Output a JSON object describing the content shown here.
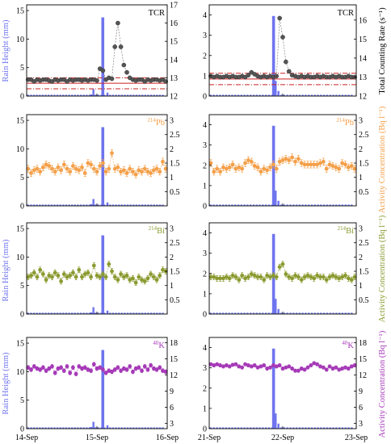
{
  "figure": {
    "left_ylabel": "Rain Height (mm)",
    "right_ylabels": [
      "Total Counting Rate (s⁻¹)",
      "Activity Concentration (Bq l⁻¹)",
      "Activity Concentration (Bq l⁻¹)",
      "Activity Concentration (Bq l⁻¹)"
    ],
    "x_ticks_left": [
      "14-Sep",
      "15-Sep",
      "16-Sep"
    ],
    "x_ticks_right": [
      "21-Sep",
      "22-Sep",
      "23-Sep"
    ],
    "colors": {
      "rain": "#6f74ee",
      "tcr": "#555555",
      "pb": "#f4a04a",
      "bi": "#8b9a30",
      "k": "#a63ab8",
      "threshold": "#cc2222"
    }
  },
  "chart_data": [
    {
      "type": "bar+scatter",
      "panel": "tcr-14-16",
      "label": "TCR",
      "label_sup": "",
      "x_range": [
        0,
        48
      ],
      "rain_ylim": [
        0,
        16
      ],
      "rain_ticks": [
        0,
        5,
        10,
        15
      ],
      "rain": [
        {
          "x": 22.0,
          "y": 0.3
        },
        {
          "x": 22.8,
          "y": 1.2
        },
        {
          "x": 26.0,
          "y": 13.8
        },
        {
          "x": 27.6,
          "y": 0.6
        }
      ],
      "series_ylim": [
        12,
        17
      ],
      "series_ticks": [
        12,
        13,
        14,
        15,
        16,
        17
      ],
      "series": [
        12.9,
        12.9,
        12.8,
        12.9,
        12.85,
        12.9,
        12.9,
        12.85,
        12.8,
        12.9,
        12.85,
        12.9,
        12.9,
        12.8,
        12.9,
        12.85,
        12.9,
        12.9,
        12.85,
        12.9,
        12.85,
        12.9,
        12.9,
        12.85,
        13.5,
        13.4,
        12.9,
        13.0,
        12.95,
        14.7,
        16.0,
        14.7,
        13.7,
        13.3,
        13.0,
        12.9,
        12.85,
        12.9,
        12.9,
        12.8,
        12.9,
        12.85,
        12.9,
        12.9,
        12.85,
        12.9,
        12.8
      ],
      "thresholds": [
        {
          "y": 12.7,
          "style": "solid"
        },
        {
          "y": 13.0,
          "style": "dash"
        },
        {
          "y": 12.4,
          "style": "dash"
        }
      ]
    },
    {
      "type": "bar+scatter",
      "panel": "tcr-21-23",
      "label": "TCR",
      "label_sup": "",
      "x_range": [
        0,
        48
      ],
      "rain_ylim": [
        0,
        4.5
      ],
      "rain_ticks": [
        0,
        1,
        2,
        3,
        4
      ],
      "rain": [
        {
          "x": 21.0,
          "y": 3.95
        },
        {
          "x": 21.7,
          "y": 0.75
        },
        {
          "x": 22.6,
          "y": 0.25
        }
      ],
      "series_ylim": [
        12,
        16.8
      ],
      "series_ticks": [
        12,
        13,
        14,
        15,
        16
      ],
      "series": [
        13.05,
        13.0,
        13.05,
        13.0,
        13.0,
        13.05,
        13.0,
        13.05,
        13.0,
        13.0,
        13.05,
        13.0,
        13.1,
        13.25,
        13.15,
        13.05,
        13.0,
        13.05,
        13.0,
        13.05,
        13.0,
        13.05,
        16.1,
        15.1,
        13.8,
        13.3,
        13.1,
        13.05,
        13.0,
        13.05,
        13.0,
        13.05,
        13.0,
        13.0,
        13.05,
        13.0,
        13.05,
        13.0,
        13.0,
        13.05,
        13.0,
        13.05,
        13.0,
        13.0,
        13.05,
        13.0,
        13.0
      ],
      "thresholds": [
        {
          "y": 12.9,
          "style": "solid"
        },
        {
          "y": 13.2,
          "style": "dash"
        },
        {
          "y": 12.6,
          "style": "dash"
        }
      ]
    },
    {
      "type": "bar+scatter",
      "panel": "pb-14-16",
      "label": "Pb",
      "label_sup": "214",
      "x_range": [
        0,
        48
      ],
      "rain_ylim": [
        0,
        16
      ],
      "rain_ticks": [
        0,
        5,
        10,
        15
      ],
      "rain": [
        {
          "x": 22.0,
          "y": 0.3
        },
        {
          "x": 22.8,
          "y": 1.2
        },
        {
          "x": 26.0,
          "y": 13.8
        },
        {
          "x": 27.6,
          "y": 0.6
        }
      ],
      "series_ylim": [
        0,
        3.2
      ],
      "series_ticks": [
        0.5,
        1.0,
        1.5,
        2.0,
        2.5,
        3.0
      ],
      "series": [
        1.3,
        1.15,
        1.25,
        1.3,
        1.2,
        1.35,
        1.45,
        1.4,
        1.3,
        1.2,
        1.35,
        1.25,
        1.45,
        1.3,
        1.2,
        1.4,
        1.3,
        1.25,
        1.35,
        1.15,
        1.5,
        1.45,
        1.3,
        1.2,
        1.4,
        1.5,
        1.2,
        1.3,
        1.85,
        1.3,
        1.35,
        1.2,
        1.25,
        1.15,
        1.3,
        1.2,
        1.1,
        1.25,
        1.2,
        1.3,
        1.2,
        1.15,
        1.25,
        1.3,
        1.2,
        1.55,
        1.3
      ],
      "error": 0.12
    },
    {
      "type": "bar+scatter",
      "panel": "pb-21-23",
      "label": "Pb",
      "label_sup": "214",
      "x_range": [
        0,
        48
      ],
      "rain_ylim": [
        0,
        4.5
      ],
      "rain_ticks": [
        0,
        1,
        2,
        3,
        4
      ],
      "rain": [
        {
          "x": 21.0,
          "y": 3.95
        },
        {
          "x": 21.7,
          "y": 0.75
        },
        {
          "x": 22.6,
          "y": 0.25
        }
      ],
      "series_ylim": [
        0,
        3.2
      ],
      "series_ticks": [
        0.5,
        1.0,
        1.5,
        2.0,
        2.5,
        3.0
      ],
      "series": [
        1.5,
        1.2,
        1.3,
        1.2,
        1.35,
        1.3,
        1.35,
        1.45,
        1.3,
        1.35,
        1.3,
        1.5,
        1.6,
        1.55,
        1.4,
        1.35,
        1.2,
        1.3,
        1.25,
        1.35,
        1.45,
        1.3,
        1.55,
        1.6,
        1.65,
        1.6,
        1.7,
        1.55,
        1.65,
        1.5,
        1.45,
        1.45,
        1.45,
        1.45,
        1.45,
        1.5,
        1.55,
        1.3,
        1.45,
        1.4,
        1.35,
        1.3,
        1.5,
        1.45,
        1.35,
        1.4,
        1.3
      ],
      "error": 0.12
    },
    {
      "type": "bar+scatter",
      "panel": "bi-14-16",
      "label": "Bi",
      "label_sup": "214",
      "x_range": [
        0,
        48
      ],
      "rain_ylim": [
        0,
        16
      ],
      "rain_ticks": [
        0,
        5,
        10,
        15
      ],
      "rain": [
        {
          "x": 22.0,
          "y": 0.3
        },
        {
          "x": 22.8,
          "y": 1.2
        },
        {
          "x": 26.0,
          "y": 13.8
        },
        {
          "x": 27.6,
          "y": 0.6
        }
      ],
      "series_ylim": [
        0,
        3.2
      ],
      "series_ticks": [
        0.5,
        1.0,
        1.5,
        2.0,
        2.5,
        3.0
      ],
      "series": [
        1.3,
        1.35,
        1.45,
        1.3,
        1.55,
        1.4,
        1.2,
        1.35,
        1.3,
        1.45,
        1.35,
        1.15,
        1.4,
        1.3,
        1.35,
        1.45,
        1.3,
        1.55,
        1.3,
        1.4,
        1.45,
        1.3,
        1.7,
        1.35,
        1.3,
        1.4,
        1.3,
        1.75,
        1.5,
        1.3,
        1.2,
        1.4,
        1.3,
        1.35,
        1.2,
        1.25,
        1.1,
        1.3,
        1.2,
        1.15,
        1.25,
        1.4,
        1.3,
        1.2,
        1.35,
        1.55,
        1.5
      ],
      "error": 0.1
    },
    {
      "type": "bar+scatter",
      "panel": "bi-21-23",
      "label": "Bi",
      "label_sup": "214",
      "x_range": [
        0,
        48
      ],
      "rain_ylim": [
        0,
        4.5
      ],
      "rain_ticks": [
        0,
        1,
        2,
        3,
        4
      ],
      "rain": [
        {
          "x": 21.0,
          "y": 3.95
        },
        {
          "x": 21.7,
          "y": 0.75
        },
        {
          "x": 22.6,
          "y": 0.25
        }
      ],
      "series_ylim": [
        0,
        3.2
      ],
      "series_ticks": [
        0.5,
        1.0,
        1.5,
        2.0,
        2.5,
        3.0
      ],
      "series": [
        1.3,
        1.3,
        1.25,
        1.25,
        1.25,
        1.3,
        1.25,
        1.35,
        1.3,
        1.2,
        1.35,
        1.25,
        1.3,
        1.4,
        1.35,
        1.3,
        1.3,
        1.2,
        1.35,
        1.3,
        1.35,
        1.3,
        1.65,
        1.75,
        1.4,
        1.3,
        1.25,
        1.35,
        1.3,
        1.2,
        1.3,
        1.35,
        1.3,
        1.25,
        1.35,
        1.3,
        1.3,
        1.2,
        1.3,
        1.35,
        1.3,
        1.25,
        1.3,
        1.35,
        1.25,
        1.2,
        1.3
      ],
      "error": 0.1
    },
    {
      "type": "bar+scatter",
      "panel": "k-14-16",
      "label": "K",
      "label_sup": "40",
      "x_range": [
        0,
        48
      ],
      "rain_ylim": [
        0,
        16
      ],
      "rain_ticks": [
        0,
        5,
        10,
        15
      ],
      "rain": [
        {
          "x": 22.0,
          "y": 0.3
        },
        {
          "x": 22.8,
          "y": 1.2
        },
        {
          "x": 26.0,
          "y": 13.8
        },
        {
          "x": 27.6,
          "y": 0.6
        }
      ],
      "series_ylim": [
        2,
        19
      ],
      "series_ticks": [
        3,
        6,
        9,
        12,
        15,
        18
      ],
      "series": [
        13.4,
        13.0,
        13.6,
        13.2,
        13.0,
        13.4,
        12.8,
        13.2,
        13.6,
        12.4,
        13.2,
        13.4,
        12.8,
        13.6,
        12.4,
        13.4,
        12.2,
        13.6,
        13.2,
        13.4,
        13.0,
        12.8,
        14.0,
        13.2,
        13.4,
        13.0,
        12.4,
        12.8,
        12.6,
        13.0,
        13.4,
        12.8,
        13.2,
        13.0,
        13.6,
        12.6,
        13.2,
        13.4,
        12.8,
        13.6,
        13.0,
        13.8,
        13.2,
        13.0,
        13.4,
        12.8,
        12.6
      ],
      "error": 0.35
    },
    {
      "type": "bar+scatter",
      "panel": "k-21-23",
      "label": "K",
      "label_sup": "40",
      "x_range": [
        0,
        48
      ],
      "rain_ylim": [
        0,
        4.5
      ],
      "rain_ticks": [
        0,
        1,
        2,
        3,
        4
      ],
      "rain": [
        {
          "x": 21.0,
          "y": 3.95
        },
        {
          "x": 21.7,
          "y": 0.75
        },
        {
          "x": 22.6,
          "y": 0.25
        }
      ],
      "series_ylim": [
        2,
        19
      ],
      "series_ticks": [
        3,
        6,
        9,
        12,
        15,
        18
      ],
      "series": [
        14.0,
        13.8,
        14.0,
        13.8,
        13.6,
        13.8,
        13.6,
        13.9,
        14.0,
        13.6,
        13.4,
        14.0,
        13.8,
        13.6,
        13.8,
        13.4,
        13.6,
        13.8,
        13.2,
        13.4,
        13.8,
        13.6,
        13.8,
        13.2,
        13.4,
        13.6,
        13.2,
        12.8,
        12.8,
        13.2,
        13.0,
        13.4,
        13.8,
        14.2,
        14.0,
        13.6,
        13.4,
        13.0,
        13.6,
        13.2,
        13.4,
        13.0,
        13.2,
        13.4,
        13.2,
        13.6,
        13.8
      ],
      "error": 0.3
    }
  ]
}
